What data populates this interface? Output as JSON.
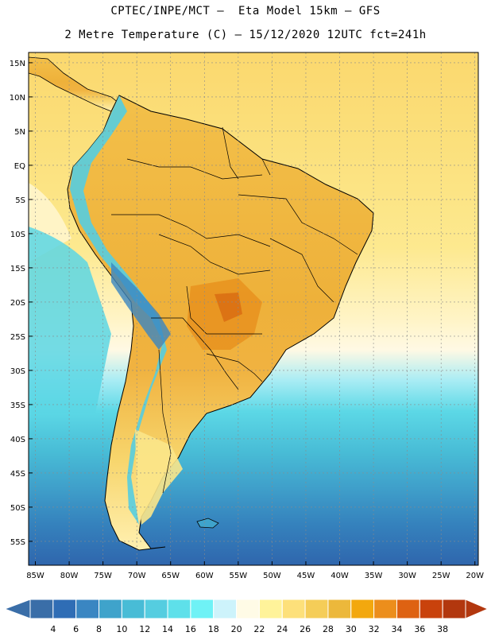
{
  "header": {
    "line1": "CPTEC/INPE/MCT –  Eta Model 15km – GFS",
    "line2": "2 Metre Temperature (C) – 15/12/2020 12UTC fct=241h"
  },
  "map": {
    "lon_range": [
      -86,
      -19.5
    ],
    "lat_range": [
      -58.5,
      16.5
    ],
    "lat_ticks": [
      "15N",
      "10N",
      "5N",
      "EQ",
      "5S",
      "10S",
      "15S",
      "20S",
      "25S",
      "30S",
      "35S",
      "40S",
      "45S",
      "50S",
      "55S"
    ],
    "lon_ticks": [
      "85W",
      "80W",
      "75W",
      "70W",
      "65W",
      "60W",
      "55W",
      "50W",
      "45W",
      "40W",
      "35W",
      "30W",
      "25W",
      "20W"
    ],
    "grid": true,
    "field": "2 Metre Temperature (C)"
  },
  "colorbar": {
    "labels": [
      "4",
      "6",
      "8",
      "10",
      "12",
      "14",
      "16",
      "18",
      "20",
      "22",
      "24",
      "26",
      "28",
      "30",
      "32",
      "34",
      "36",
      "38"
    ],
    "colors": [
      "#3a6ea8",
      "#2f6db5",
      "#3a86c2",
      "#3fa3cb",
      "#48bcd6",
      "#55cde0",
      "#5ee0ea",
      "#6ff2f6",
      "#cdf3fb",
      "#fffbe6",
      "#fff39a",
      "#fde07a",
      "#f5cd58",
      "#ecb83b",
      "#f3a80e",
      "#ec8e1c",
      "#de6212",
      "#c9420c",
      "#b2370e"
    ]
  }
}
